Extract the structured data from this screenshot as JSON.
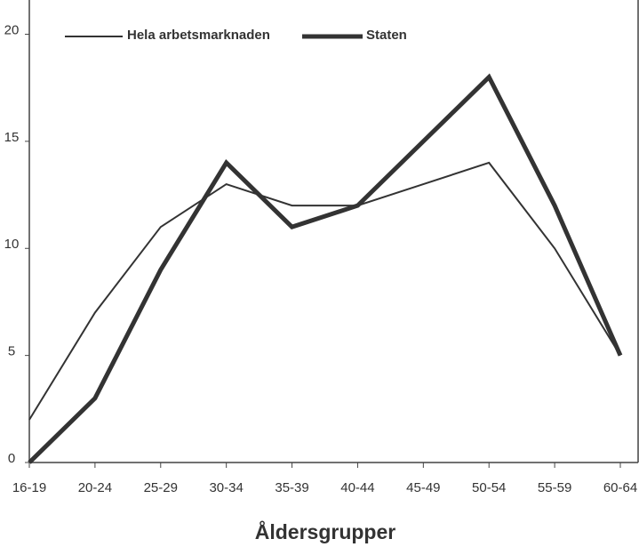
{
  "chart_data": {
    "type": "line",
    "x_label": "Åldersgrupper",
    "categories": [
      "16-19",
      "20-24",
      "25-29",
      "30-34",
      "35-39",
      "40-44",
      "45-49",
      "50-54",
      "55-59",
      "60-64"
    ],
    "series": [
      {
        "name": "Hela arbetsmarknaden",
        "color": "#333333",
        "values": [
          2,
          7,
          11,
          13,
          12,
          12,
          13,
          14,
          10,
          5
        ]
      },
      {
        "name": "Staten",
        "color": "#333333",
        "values": [
          0,
          3,
          9,
          14,
          11,
          12,
          15,
          18,
          12,
          5
        ]
      }
    ],
    "ylim": [
      0,
      21.6
    ],
    "yticks": [
      0,
      5,
      10,
      15,
      20
    ],
    "grid": false,
    "legend": "top"
  }
}
